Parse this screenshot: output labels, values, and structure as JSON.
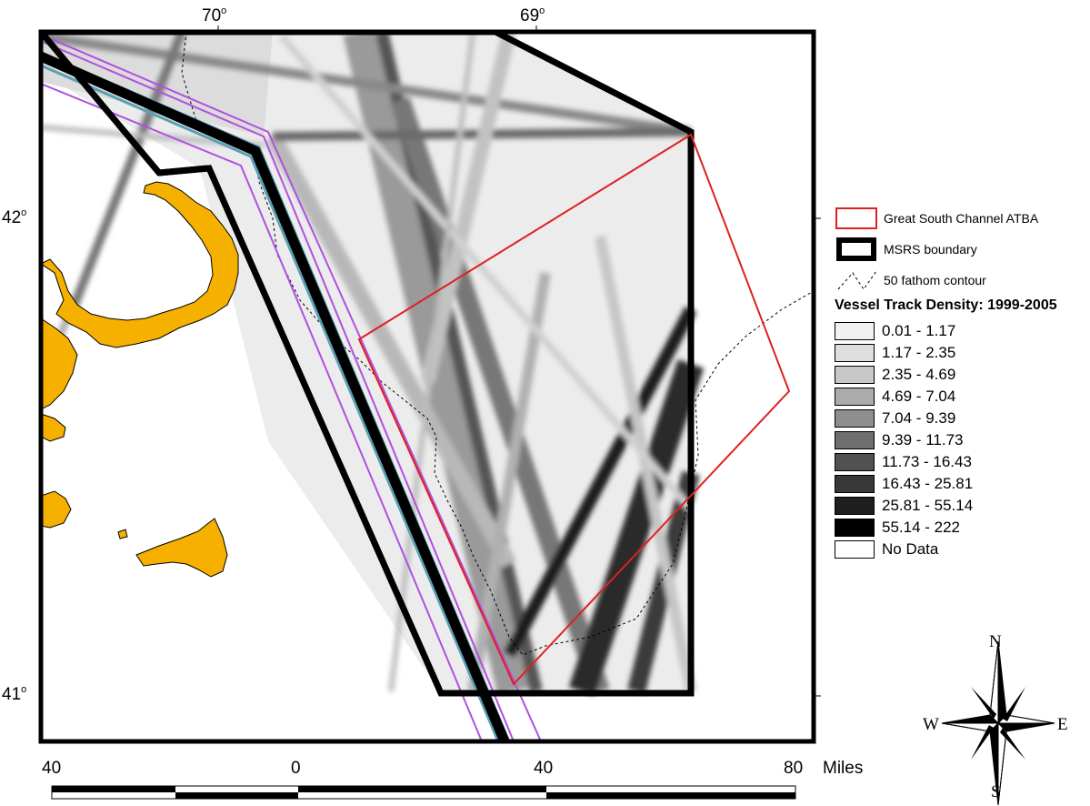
{
  "map": {
    "lon_labels": [
      {
        "deg": "70",
        "sup": "o"
      },
      {
        "deg": "69",
        "sup": "o"
      }
    ],
    "lat_labels": [
      {
        "deg": "42",
        "sup": "o"
      },
      {
        "deg": "41",
        "sup": "o"
      }
    ]
  },
  "legend": {
    "atba_label": "Great South Channel ATBA",
    "atba_color": "#e02020",
    "msrs_label": "MSRS boundary",
    "contour_label": "50 fathom contour",
    "density_title": "Vessel Track Density: 1999-2005",
    "classes": [
      {
        "label": "0.01 - 1.17",
        "color": "#f2f2f2"
      },
      {
        "label": "1.17 - 2.35",
        "color": "#dedede"
      },
      {
        "label": "2.35 - 4.69",
        "color": "#c8c8c8"
      },
      {
        "label": "4.69 - 7.04",
        "color": "#ababab"
      },
      {
        "label": "7.04 - 9.39",
        "color": "#8e8e8e"
      },
      {
        "label": "9.39 - 11.73",
        "color": "#6e6e6e"
      },
      {
        "label": "11.73 - 16.43",
        "color": "#515151"
      },
      {
        "label": "16.43 - 25.81",
        "color": "#383838"
      },
      {
        "label": "25.81 - 55.14",
        "color": "#1e1e1e"
      },
      {
        "label": "55.14 - 222",
        "color": "#000000"
      },
      {
        "label": "No Data",
        "color": "#ffffff"
      }
    ]
  },
  "scale": {
    "ticks": [
      "40",
      "0",
      "40",
      "80"
    ],
    "unit": "Miles"
  },
  "compass": {
    "n": "N",
    "s": "S",
    "e": "E",
    "w": "W"
  },
  "colors": {
    "land": "#f5b000",
    "lane_outer": "#b050e0",
    "lane_inner": "#5aa0b4"
  }
}
